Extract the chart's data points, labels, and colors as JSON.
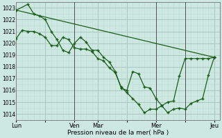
{
  "bg_color": "#cce8e0",
  "grid_color_major": "#aac8c0",
  "grid_color_minor": "#bbddd5",
  "line_color": "#1a5c1a",
  "xlabel": "Pression niveau de la mer( hPa )",
  "xtick_labels": [
    "Lun",
    "",
    "Ven",
    "Mar",
    "",
    "Mer",
    "",
    "Jeu"
  ],
  "xtick_positions": [
    0,
    5,
    10,
    14,
    19,
    24,
    29,
    34
  ],
  "ylim": [
    1013.5,
    1023.5
  ],
  "series1_x": [
    0,
    1,
    2,
    3,
    4,
    5,
    6,
    7,
    8,
    9,
    10,
    11,
    12,
    13,
    14,
    15,
    16,
    17,
    18,
    19,
    20,
    21,
    22,
    23,
    24,
    25,
    26,
    27,
    28,
    29,
    30,
    31,
    32,
    33,
    34
  ],
  "series1_y": [
    1020.4,
    1021.1,
    1021.0,
    1021.0,
    1020.8,
    1020.5,
    1019.8,
    1019.8,
    1020.5,
    1020.3,
    1019.6,
    1019.5,
    1019.5,
    1019.3,
    1018.7,
    1018.5,
    1017.9,
    1017.5,
    1016.3,
    1015.8,
    1015.3,
    1014.8,
    1014.1,
    1014.4,
    1014.4,
    1014.7,
    1015.0,
    1015.1,
    1017.2,
    1018.7,
    1018.7,
    1018.7,
    1018.7,
    1018.7,
    1018.8
  ],
  "series2_x": [
    0,
    2,
    3,
    4,
    5,
    6,
    7,
    8,
    9,
    10,
    11,
    12,
    13,
    14,
    15,
    16,
    17,
    18,
    19,
    20,
    21,
    22,
    23,
    24,
    25,
    26,
    27,
    28,
    29,
    30,
    31,
    32,
    33,
    34
  ],
  "series2_y": [
    1022.8,
    1023.3,
    1022.5,
    1022.3,
    1022.0,
    1021.0,
    1020.3,
    1019.4,
    1019.2,
    1020.0,
    1020.5,
    1020.1,
    1019.4,
    1019.4,
    1018.8,
    1018.4,
    1017.6,
    1016.2,
    1016.0,
    1017.6,
    1017.4,
    1016.3,
    1016.2,
    1015.3,
    1014.7,
    1014.1,
    1014.4,
    1014.5,
    1014.4,
    1014.9,
    1015.1,
    1015.3,
    1017.3,
    1018.8
  ],
  "series3_x": [
    0,
    34
  ],
  "series3_y": [
    1022.8,
    1018.8
  ],
  "vline_positions": [
    10,
    24,
    29
  ],
  "figsize": [
    3.2,
    2.0
  ],
  "dpi": 100
}
